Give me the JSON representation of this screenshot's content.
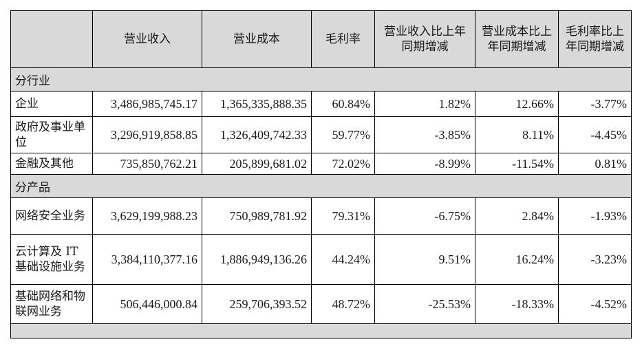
{
  "header": {
    "col0": "",
    "col1": "营业收入",
    "col2": "营业成本",
    "col3": "毛利率",
    "col4": "营业收入比上年同期增减",
    "col5": "营业成本比上年同期增减",
    "col6": "毛利率比上年同期增减"
  },
  "sections": [
    {
      "title": "分行业",
      "rows": [
        {
          "label": "企业",
          "revenue": "3,486,985,745.17",
          "cost": "1,365,335,888.35",
          "margin": "60.84%",
          "rev_change": "1.82%",
          "cost_change": "12.66%",
          "margin_change": "-3.77%"
        },
        {
          "label": "政府及事业单位",
          "revenue": "3,296,919,858.85",
          "cost": "1,326,409,742.33",
          "margin": "59.77%",
          "rev_change": "-3.85%",
          "cost_change": "8.11%",
          "margin_change": "-4.45%"
        },
        {
          "label": "金融及其他",
          "revenue": "735,850,762.21",
          "cost": "205,899,681.02",
          "margin": "72.02%",
          "rev_change": "-8.99%",
          "cost_change": "-11.54%",
          "margin_change": "0.81%"
        }
      ]
    },
    {
      "title": "分产品",
      "rows": [
        {
          "label": "网络安全业务",
          "revenue": "3,629,199,988.23",
          "cost": "750,989,781.92",
          "margin": "79.31%",
          "rev_change": "-6.75%",
          "cost_change": "2.84%",
          "margin_change": "-1.93%"
        },
        {
          "label": "云计算及 IT 基础设施业务",
          "revenue": "3,384,110,377.16",
          "cost": "1,886,949,136.26",
          "margin": "44.24%",
          "rev_change": "9.51%",
          "cost_change": "16.24%",
          "margin_change": "-3.23%"
        },
        {
          "label": "基础网络和物联网业务",
          "revenue": "506,446,000.84",
          "cost": "259,706,393.52",
          "margin": "48.72%",
          "rev_change": "-25.53%",
          "cost_change": "-18.33%",
          "margin_change": "-4.52%"
        }
      ]
    }
  ]
}
